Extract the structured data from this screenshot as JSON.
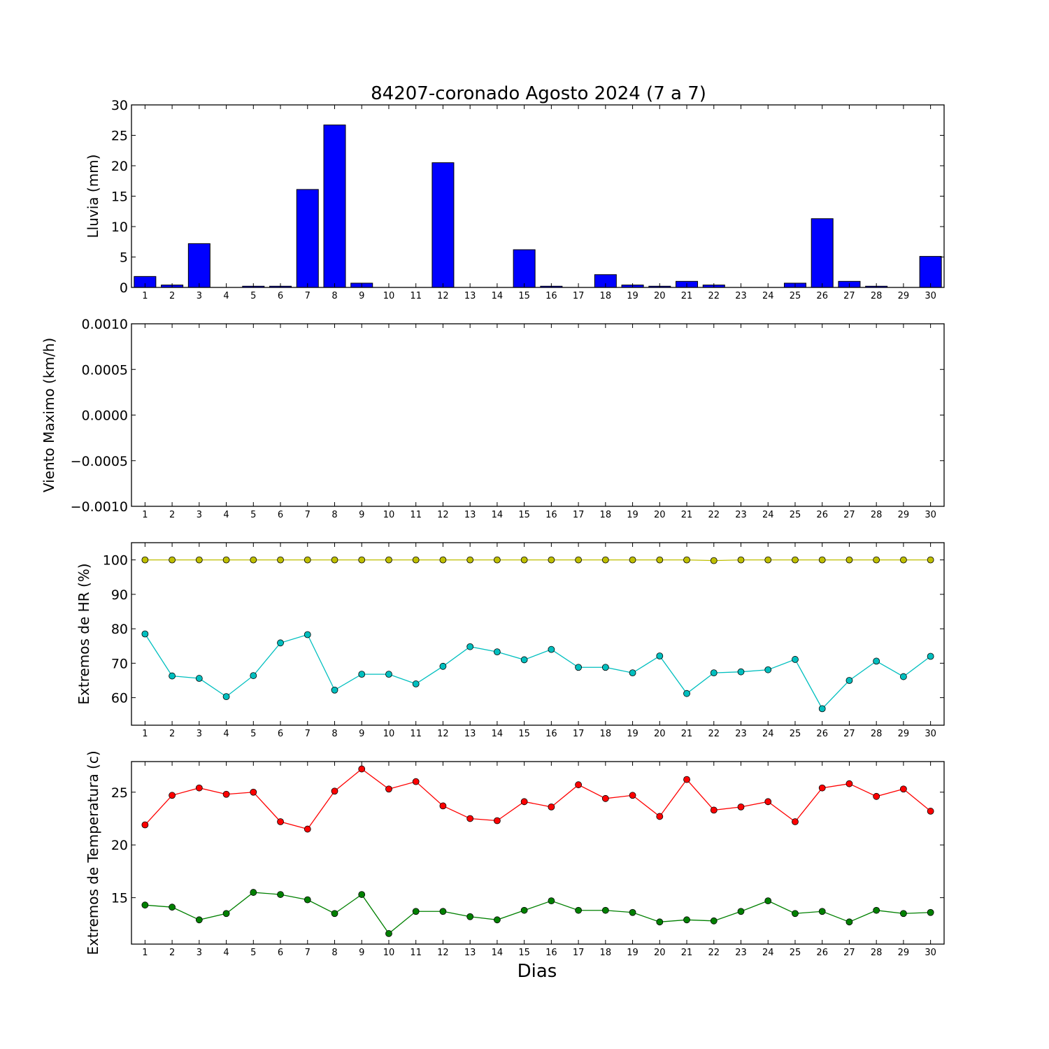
{
  "figure": {
    "title": "84207-coronado Agosto 2024  (7 a 7)",
    "xlabel": "Dias"
  },
  "chart_data": [
    {
      "type": "bar",
      "ylabel": "Lluvia (mm)",
      "ylim": [
        0,
        30
      ],
      "yticks": [
        0,
        5,
        10,
        15,
        20,
        25,
        30
      ],
      "ytick_labels": [
        "0",
        "5",
        "10",
        "15",
        "20",
        "25",
        "30"
      ],
      "categories": [
        "1",
        "2",
        "3",
        "4",
        "5",
        "6",
        "7",
        "8",
        "9",
        "10",
        "11",
        "12",
        "13",
        "14",
        "15",
        "16",
        "17",
        "18",
        "19",
        "20",
        "21",
        "22",
        "23",
        "24",
        "25",
        "26",
        "27",
        "28",
        "29",
        "30"
      ],
      "series": [
        {
          "color": "#0000ff",
          "values": [
            1.8,
            0.4,
            7.2,
            0,
            0.2,
            0.2,
            16.1,
            26.7,
            0.7,
            0,
            0,
            20.5,
            0,
            0,
            6.2,
            0.2,
            0,
            2.1,
            0.4,
            0.2,
            1.0,
            0.4,
            0,
            0,
            0.7,
            11.3,
            1.0,
            0.2,
            0,
            5.1
          ]
        }
      ]
    },
    {
      "type": "line",
      "ylabel": "Viento Maximo (km/h)",
      "ylim": [
        -0.001,
        0.001
      ],
      "yticks": [
        -0.001,
        -0.0005,
        0,
        0.0005,
        0.001
      ],
      "ytick_labels": [
        "−0.0010",
        "−0.0005",
        "0.0000",
        "0.0005",
        "0.0010"
      ],
      "categories": [
        "1",
        "2",
        "3",
        "4",
        "5",
        "6",
        "7",
        "8",
        "9",
        "10",
        "11",
        "12",
        "13",
        "14",
        "15",
        "16",
        "17",
        "18",
        "19",
        "20",
        "21",
        "22",
        "23",
        "24",
        "25",
        "26",
        "27",
        "28",
        "29",
        "30"
      ],
      "series": []
    },
    {
      "type": "line",
      "ylabel": "Extremos de HR (%)",
      "ylim": [
        52,
        105
      ],
      "yticks": [
        60,
        70,
        80,
        90,
        100
      ],
      "ytick_labels": [
        "60",
        "70",
        "80",
        "90",
        "100"
      ],
      "categories": [
        "1",
        "2",
        "3",
        "4",
        "5",
        "6",
        "7",
        "8",
        "9",
        "10",
        "11",
        "12",
        "13",
        "14",
        "15",
        "16",
        "17",
        "18",
        "19",
        "20",
        "21",
        "22",
        "23",
        "24",
        "25",
        "26",
        "27",
        "28",
        "29",
        "30"
      ],
      "series": [
        {
          "color": "#bfbf00",
          "values": [
            100,
            100,
            100,
            100,
            100,
            100,
            100,
            100,
            100,
            100,
            100,
            100,
            100,
            100,
            100,
            100,
            100,
            100,
            100,
            100,
            100,
            99.8,
            100,
            100,
            100,
            100,
            100,
            100,
            100,
            100
          ]
        },
        {
          "color": "#00bfbf",
          "values": [
            78.5,
            66.3,
            65.6,
            60.3,
            66.4,
            75.9,
            78.3,
            62.2,
            66.8,
            66.8,
            64.0,
            69.1,
            74.8,
            73.3,
            71.0,
            74.0,
            68.8,
            68.8,
            67.2,
            72.1,
            61.2,
            67.2,
            67.5,
            68.1,
            71.1,
            56.8,
            65.0,
            70.6,
            66.1,
            72.0
          ]
        }
      ]
    },
    {
      "type": "line",
      "ylabel": "Extremos de Temperatura (c)",
      "ylim": [
        10.6,
        27.9
      ],
      "yticks": [
        15,
        20,
        25
      ],
      "ytick_labels": [
        "15",
        "20",
        "25"
      ],
      "categories": [
        "1",
        "2",
        "3",
        "4",
        "5",
        "6",
        "7",
        "8",
        "9",
        "10",
        "11",
        "12",
        "13",
        "14",
        "15",
        "16",
        "17",
        "18",
        "19",
        "20",
        "21",
        "22",
        "23",
        "24",
        "25",
        "26",
        "27",
        "28",
        "29",
        "30"
      ],
      "series": [
        {
          "color": "#ff0000",
          "values": [
            21.9,
            24.7,
            25.4,
            24.8,
            25.0,
            22.2,
            21.5,
            25.1,
            27.2,
            25.3,
            26.0,
            23.7,
            22.5,
            22.3,
            24.1,
            23.6,
            25.7,
            24.4,
            24.7,
            22.7,
            26.2,
            23.3,
            23.6,
            24.1,
            22.2,
            25.4,
            25.8,
            24.6,
            25.3,
            23.2
          ]
        },
        {
          "color": "#008000",
          "values": [
            14.3,
            14.1,
            12.9,
            13.5,
            15.5,
            15.3,
            14.8,
            13.5,
            15.3,
            11.6,
            13.7,
            13.7,
            13.2,
            12.9,
            13.8,
            14.7,
            13.8,
            13.8,
            13.6,
            12.7,
            12.9,
            12.8,
            13.7,
            14.7,
            13.5,
            13.7,
            12.7,
            13.8,
            13.5,
            13.6
          ]
        }
      ]
    }
  ]
}
